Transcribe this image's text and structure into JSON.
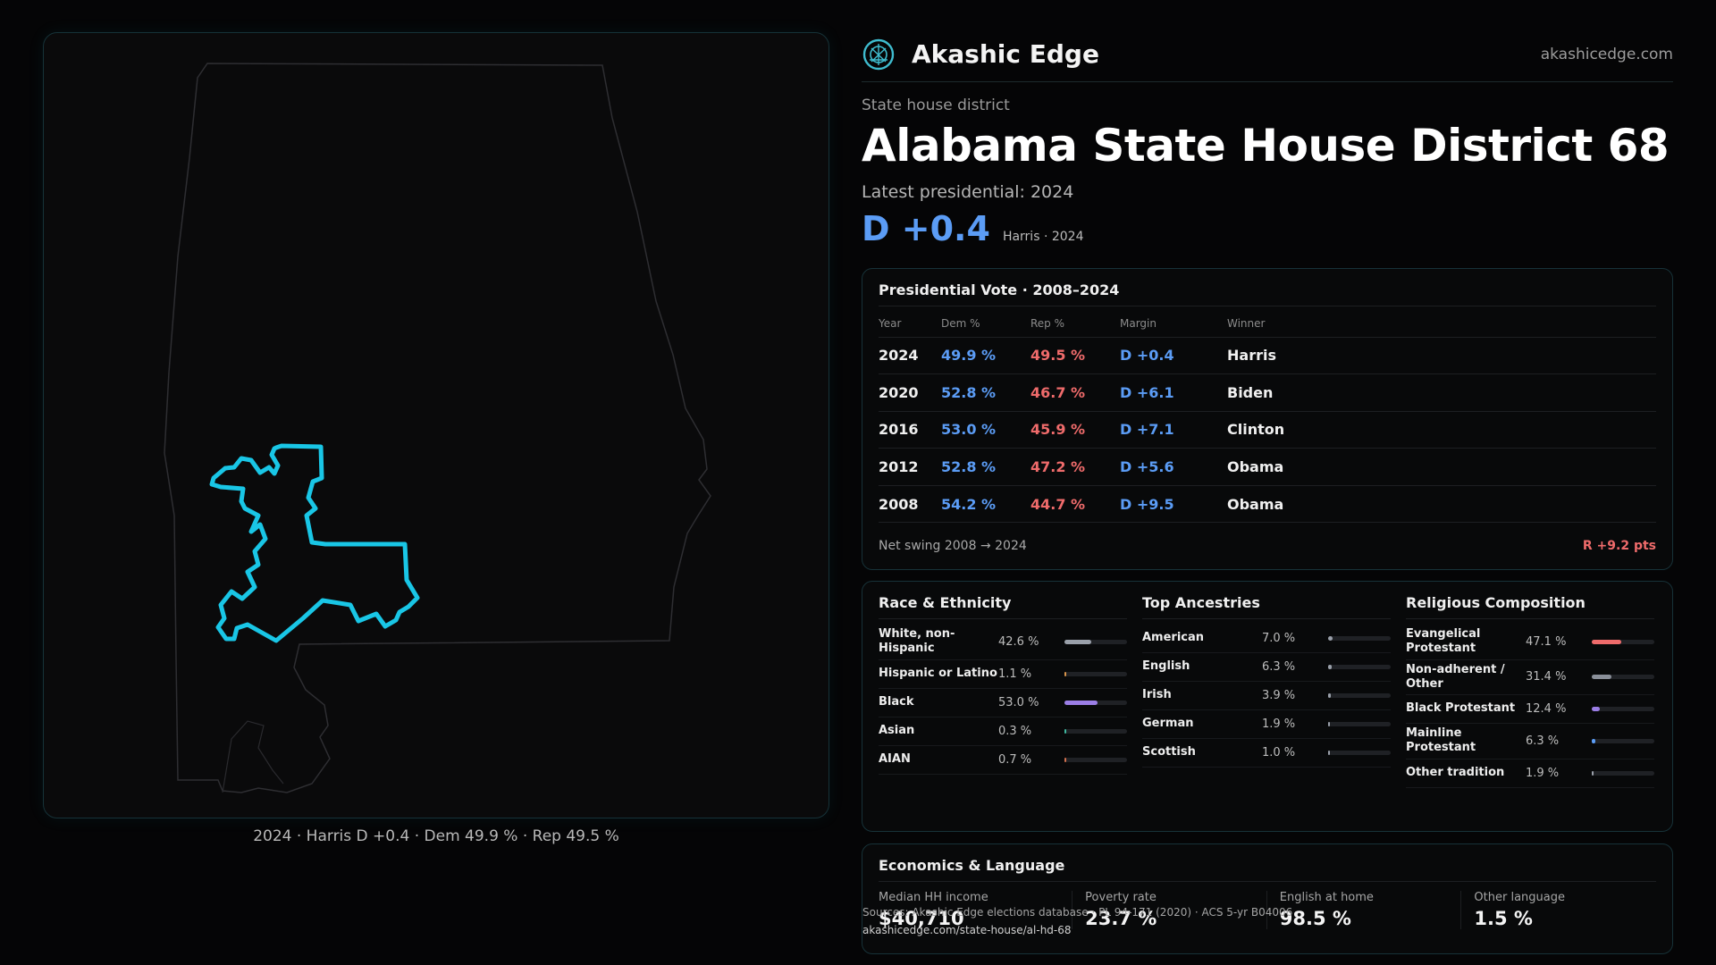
{
  "brand": {
    "name": "Akashic Edge",
    "url": "akashicedge.com",
    "icon": "akashic-logo-icon",
    "accent": "#3fbccf"
  },
  "map": {
    "caption": "2024 · Harris D +0.4 · Dem 49.9 % · Rep 49.5 %",
    "highlight_color": "#19c6e6"
  },
  "header": {
    "kicker": "State house district",
    "title": "Alabama State House District 68",
    "latest_label": "Latest presidential: 2024",
    "margin": "D +0.4",
    "margin_sub": "Harris · 2024"
  },
  "colors": {
    "dem": "#5b9cf5",
    "rep": "#ef6b6b"
  },
  "presidential": {
    "title": "Presidential Vote · 2008–2024",
    "headers": [
      "Year",
      "Dem %",
      "Rep %",
      "Margin",
      "Winner"
    ],
    "rows": [
      {
        "year": "2024",
        "dem": "49.9 %",
        "rep": "49.5 %",
        "margin": "D +0.4",
        "winner": "Harris"
      },
      {
        "year": "2020",
        "dem": "52.8 %",
        "rep": "46.7 %",
        "margin": "D +6.1",
        "winner": "Biden"
      },
      {
        "year": "2016",
        "dem": "53.0 %",
        "rep": "45.9 %",
        "margin": "D +7.1",
        "winner": "Clinton"
      },
      {
        "year": "2012",
        "dem": "52.8 %",
        "rep": "47.2 %",
        "margin": "D +5.6",
        "winner": "Obama"
      },
      {
        "year": "2008",
        "dem": "54.2 %",
        "rep": "44.7 %",
        "margin": "D +9.5",
        "winner": "Obama"
      }
    ],
    "swing_label": "Net swing 2008 → 2024",
    "swing_value": "R +9.2 pts"
  },
  "race": {
    "title": "Race & Ethnicity",
    "rows": [
      {
        "label": "White, non-Hispanic",
        "value": "42.6 %",
        "fraction": 0.426,
        "color": "#9aa0aa"
      },
      {
        "label": "Hispanic or Latino",
        "value": "1.1 %",
        "fraction": 0.011,
        "color": "#d9954b"
      },
      {
        "label": "Black",
        "value": "53.0 %",
        "fraction": 0.53,
        "color": "#9b7ee6"
      },
      {
        "label": "Asian",
        "value": "0.3 %",
        "fraction": 0.003,
        "color": "#3fb8a0"
      },
      {
        "label": "AIAN",
        "value": "0.7 %",
        "fraction": 0.007,
        "color": "#d0704e"
      }
    ]
  },
  "ancestry": {
    "title": "Top Ancestries",
    "rows": [
      {
        "label": "American",
        "value": "7.0 %",
        "fraction": 0.07,
        "color": "#9aa0aa"
      },
      {
        "label": "English",
        "value": "6.3 %",
        "fraction": 0.063,
        "color": "#9aa0aa"
      },
      {
        "label": "Irish",
        "value": "3.9 %",
        "fraction": 0.039,
        "color": "#9aa0aa"
      },
      {
        "label": "German",
        "value": "1.9 %",
        "fraction": 0.019,
        "color": "#9aa0aa"
      },
      {
        "label": "Scottish",
        "value": "1.0 %",
        "fraction": 0.01,
        "color": "#9aa0aa"
      }
    ]
  },
  "religion": {
    "title": "Religious Composition",
    "rows": [
      {
        "label": "Evangelical Protestant",
        "value": "47.1 %",
        "fraction": 0.471,
        "color": "#ef6b6b"
      },
      {
        "label": "Non-adherent / Other",
        "value": "31.4 %",
        "fraction": 0.314,
        "color": "#8a8f99"
      },
      {
        "label": "Black Protestant",
        "value": "12.4 %",
        "fraction": 0.124,
        "color": "#9b7ee6"
      },
      {
        "label": "Mainline Protestant",
        "value": "6.3 %",
        "fraction": 0.063,
        "color": "#5b9cf5"
      },
      {
        "label": "Other tradition",
        "value": "1.9 %",
        "fraction": 0.019,
        "color": "#9aa0aa"
      }
    ]
  },
  "economics": {
    "title": "Economics & Language",
    "cells": [
      {
        "label": "Median HH income",
        "value": "$40,710"
      },
      {
        "label": "Poverty rate",
        "value": "23.7 %"
      },
      {
        "label": "English at home",
        "value": "98.5 %"
      },
      {
        "label": "Other language",
        "value": "1.5 %"
      }
    ],
    "source": "Sources: Akashic Edge elections database · PL 94-171 (2020) · ACS 5-yr B04006",
    "source_url": "akashicedge.com/state-house/al-hd-68"
  }
}
